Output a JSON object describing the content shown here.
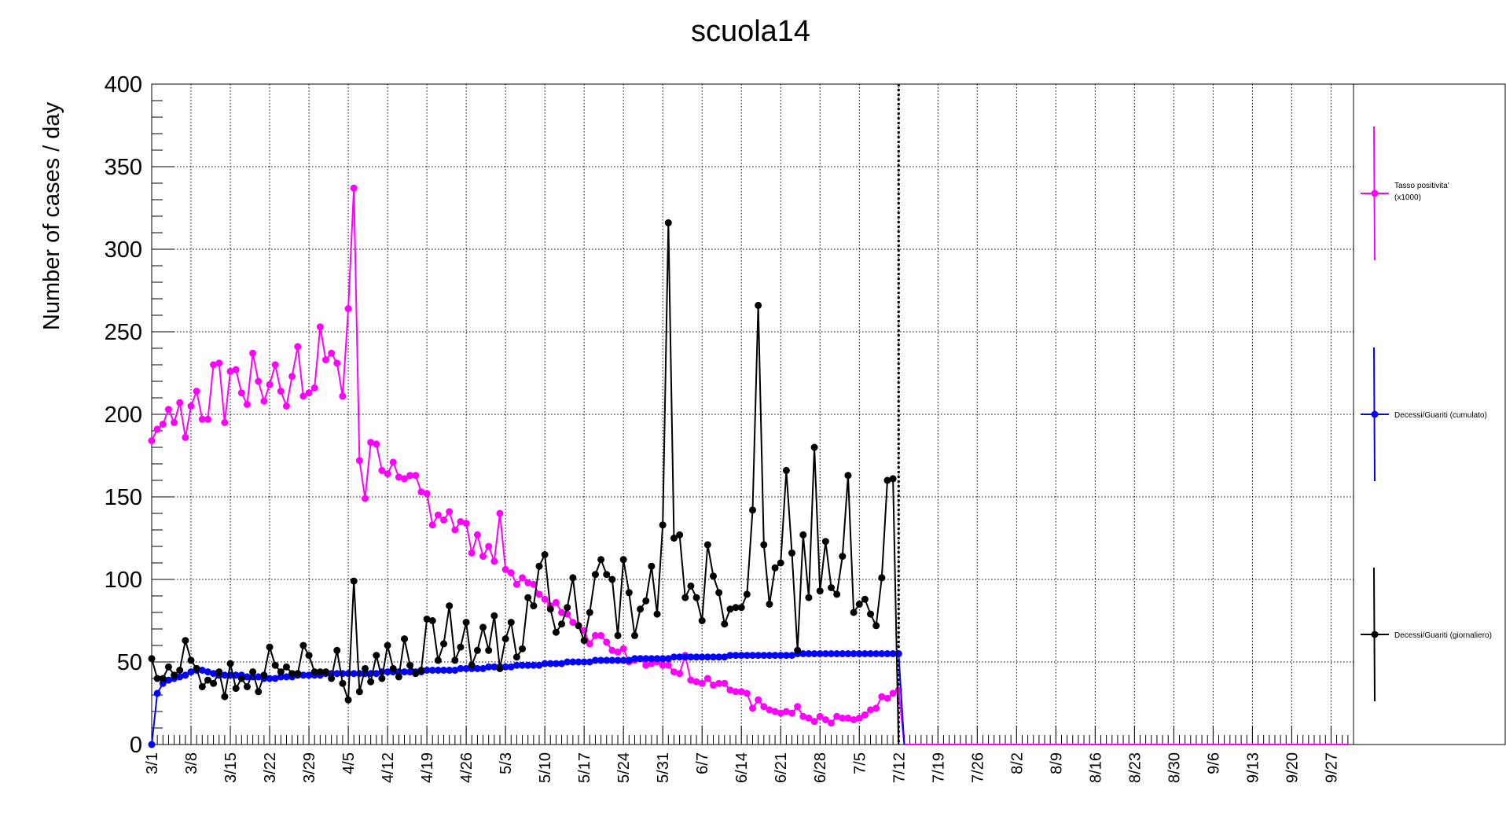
{
  "chart_data": {
    "type": "line",
    "title": "scuola14",
    "xlabel": "",
    "ylabel": "Number of cases / day",
    "ylim": [
      0,
      400
    ],
    "yticks": [
      0,
      50,
      100,
      150,
      200,
      250,
      300,
      350,
      400
    ],
    "x_start": "3/1",
    "x_days": 214,
    "xtick_labels": [
      "3/1",
      "3/8",
      "3/15",
      "3/22",
      "3/29",
      "4/5",
      "4/12",
      "4/19",
      "4/26",
      "5/3",
      "5/10",
      "5/17",
      "5/24",
      "5/31",
      "6/7",
      "6/14",
      "6/21",
      "6/28",
      "7/5",
      "7/12",
      "7/19",
      "7/26",
      "8/2",
      "8/9",
      "8/16",
      "8/23",
      "8/30",
      "9/6",
      "9/13",
      "9/20",
      "9/27"
    ],
    "grid": true,
    "vertical_marker": "7/12",
    "legend_position": "right",
    "series": [
      {
        "name": "Tasso positivita' (x1000)",
        "color": "#ff00ff",
        "values": [
          184,
          191,
          194,
          203,
          195,
          207,
          186,
          205,
          214,
          197,
          197,
          230,
          231,
          195,
          226,
          227,
          213,
          206,
          237,
          220,
          208,
          218,
          230,
          214,
          205,
          223,
          241,
          211,
          213,
          216,
          253,
          233,
          237,
          231,
          211,
          264,
          337,
          172,
          149,
          183,
          182,
          166,
          164,
          171,
          162,
          161,
          163,
          163,
          153,
          152,
          133,
          139,
          136,
          141,
          130,
          135,
          134,
          116,
          127,
          114,
          120,
          111,
          140,
          106,
          104,
          97,
          101,
          98,
          97,
          91,
          88,
          84,
          86,
          80,
          79,
          74,
          72,
          69,
          61,
          66,
          66,
          62,
          57,
          56,
          58,
          50,
          51,
          52,
          48,
          49,
          50,
          48,
          48,
          44,
          43,
          54,
          39,
          38,
          37,
          40,
          36,
          37,
          37,
          33,
          32,
          32,
          31,
          22,
          27,
          23,
          21,
          20,
          19,
          20,
          19,
          23,
          17,
          16,
          14,
          17,
          15,
          13,
          17,
          16,
          16,
          15,
          16,
          18,
          21,
          22,
          29,
          28,
          31,
          33,
          0,
          0,
          0,
          0,
          0,
          0,
          0,
          0,
          0,
          0,
          0,
          0,
          0,
          0,
          0,
          0,
          0,
          0,
          0,
          0,
          0,
          0,
          0,
          0,
          0,
          0,
          0,
          0,
          0,
          0,
          0,
          0,
          0,
          0,
          0,
          0,
          0,
          0,
          0,
          0,
          0,
          0,
          0,
          0,
          0,
          0,
          0,
          0,
          0,
          0,
          0,
          0,
          0,
          0,
          0,
          0,
          0,
          0,
          0,
          0,
          0,
          0,
          0,
          0,
          0,
          0,
          0,
          0,
          0,
          0,
          0,
          0,
          0,
          0,
          0,
          0,
          0,
          0,
          0,
          0,
          0,
          0,
          0,
          0,
          0,
          0
        ]
      },
      {
        "name": "Decessi/Guariti (cumulato)",
        "color": "#0000ff",
        "values": [
          0,
          31,
          37,
          39,
          40,
          41,
          42,
          44,
          45,
          45,
          44,
          43,
          42,
          42,
          42,
          42,
          42,
          41,
          41,
          41,
          40,
          40,
          40,
          41,
          41,
          41,
          42,
          42,
          42,
          42,
          42,
          43,
          43,
          43,
          43,
          43,
          43,
          43,
          43,
          43,
          43,
          44,
          44,
          44,
          44,
          44,
          44,
          44,
          44,
          45,
          45,
          45,
          45,
          45,
          45,
          46,
          46,
          46,
          46,
          46,
          47,
          47,
          47,
          47,
          47,
          48,
          48,
          48,
          48,
          48,
          49,
          49,
          49,
          49,
          50,
          50,
          50,
          50,
          50,
          51,
          51,
          51,
          51,
          51,
          51,
          51,
          52,
          52,
          52,
          52,
          52,
          52,
          52,
          53,
          53,
          53,
          53,
          53,
          53,
          53,
          53,
          53,
          53,
          54,
          54,
          54,
          54,
          54,
          54,
          54,
          54,
          54,
          54,
          54,
          54,
          55,
          55,
          55,
          55,
          55,
          55,
          55,
          55,
          55,
          55,
          55,
          55,
          55,
          55,
          55,
          55,
          55,
          55,
          55,
          0
        ]
      },
      {
        "name": "Decessi/Guariti (giornaliero)",
        "color": "#000000",
        "values": [
          52,
          40,
          40,
          47,
          42,
          45,
          63,
          51,
          46,
          35,
          39,
          37,
          44,
          29,
          49,
          34,
          40,
          35,
          44,
          32,
          42,
          59,
          48,
          44,
          47,
          43,
          43,
          60,
          54,
          44,
          44,
          44,
          40,
          57,
          37,
          27,
          99,
          32,
          46,
          38,
          54,
          40,
          60,
          46,
          41,
          64,
          48,
          43,
          45,
          76,
          75,
          51,
          61,
          84,
          51,
          59,
          74,
          48,
          57,
          71,
          57,
          78,
          46,
          64,
          74,
          53,
          58,
          89,
          84,
          108,
          115,
          82,
          68,
          73,
          83,
          101,
          72,
          63,
          80,
          103,
          112,
          103,
          100,
          66,
          112,
          92,
          66,
          82,
          87,
          108,
          79,
          133,
          316,
          125,
          127,
          89,
          96,
          89,
          75,
          121,
          102,
          92,
          73,
          82,
          83,
          83,
          91,
          142,
          266,
          121,
          85,
          107,
          110,
          166,
          116,
          57,
          127,
          89,
          180,
          93,
          123,
          95,
          91,
          114,
          163,
          80,
          85,
          88,
          79,
          72,
          101,
          160,
          161,
          0
        ]
      }
    ]
  },
  "legend": {
    "items": [
      {
        "label": "Tasso positivita'",
        "label2": "(x1000)",
        "color": "#ff00ff"
      },
      {
        "label": "Decessi/Guariti (cumulato)",
        "label2": "",
        "color": "#0000ff"
      },
      {
        "label": "Decessi/Guariti (giornaliero)",
        "label2": "",
        "color": "#000000"
      }
    ]
  }
}
